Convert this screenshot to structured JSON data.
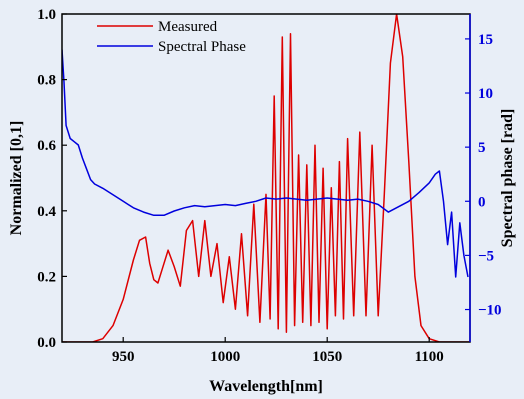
{
  "chart_data": {
    "type": "line",
    "title": "",
    "xlabel": "Wavelength[nm]",
    "ylabel_left": "Normalized [0,1]",
    "ylabel_right": "Spectral phase [rad]",
    "xlim": [
      920,
      1120
    ],
    "ylim_left": [
      0,
      1
    ],
    "ylim_right": [
      -13,
      17.3
    ],
    "x_ticks": [
      950,
      1000,
      1050,
      1100
    ],
    "y_ticks_left": [
      0.0,
      0.2,
      0.4,
      0.6,
      0.8,
      1.0
    ],
    "y_tick_labels_left": [
      "0.0",
      "0.2",
      "0.4",
      "0.6",
      "0.8",
      "1.0"
    ],
    "y_ticks_right": [
      -10,
      -5,
      0,
      5,
      10,
      15
    ],
    "y_tick_labels_right": [
      "−10",
      "−5",
      "0",
      "5",
      "10",
      "15"
    ],
    "grid": false,
    "legend_position": "top-left",
    "series": [
      {
        "name": "Measured",
        "axis": "left",
        "color": "#dd0000",
        "x": [
          920,
          935,
          940,
          945,
          950,
          955,
          958,
          961,
          963,
          965,
          967,
          969,
          972,
          975,
          978,
          981,
          984,
          987,
          990,
          993,
          996,
          999,
          1002,
          1005,
          1008,
          1011,
          1014,
          1017,
          1020,
          1022,
          1024,
          1026,
          1028,
          1030,
          1032,
          1034,
          1036,
          1038,
          1040,
          1042,
          1044,
          1046,
          1048,
          1050,
          1052,
          1054,
          1056,
          1058,
          1060,
          1063,
          1066,
          1069,
          1072,
          1075,
          1078,
          1081,
          1084,
          1087,
          1090,
          1093,
          1096,
          1100,
          1105,
          1120
        ],
        "y": [
          0.0,
          0.0,
          0.01,
          0.05,
          0.13,
          0.25,
          0.31,
          0.32,
          0.24,
          0.19,
          0.18,
          0.22,
          0.28,
          0.23,
          0.17,
          0.34,
          0.37,
          0.2,
          0.37,
          0.2,
          0.3,
          0.12,
          0.26,
          0.1,
          0.33,
          0.08,
          0.42,
          0.06,
          0.45,
          0.07,
          0.75,
          0.04,
          0.93,
          0.03,
          0.94,
          0.05,
          0.57,
          0.06,
          0.54,
          0.05,
          0.6,
          0.06,
          0.53,
          0.04,
          0.47,
          0.08,
          0.55,
          0.07,
          0.62,
          0.08,
          0.64,
          0.08,
          0.6,
          0.08,
          0.45,
          0.85,
          1.0,
          0.87,
          0.55,
          0.2,
          0.05,
          0.01,
          0.0,
          0.0
        ]
      },
      {
        "name": "Spectral Phase",
        "axis": "right",
        "color": "#0000dd",
        "x": [
          920,
          921,
          922,
          924,
          926,
          928,
          930,
          932,
          934,
          936,
          940,
          945,
          950,
          955,
          960,
          965,
          970,
          975,
          980,
          985,
          990,
          995,
          1000,
          1005,
          1010,
          1015,
          1020,
          1025,
          1030,
          1035,
          1040,
          1045,
          1050,
          1055,
          1060,
          1065,
          1070,
          1075,
          1080,
          1085,
          1090,
          1095,
          1100,
          1103,
          1105,
          1107,
          1109,
          1111,
          1113,
          1115,
          1117,
          1119
        ],
        "y": [
          14,
          11,
          7,
          5.8,
          5.5,
          5.2,
          4,
          3,
          2,
          1.6,
          1.2,
          0.6,
          0,
          -0.6,
          -1,
          -1.3,
          -1.3,
          -0.9,
          -0.6,
          -0.4,
          -0.5,
          -0.4,
          -0.3,
          -0.4,
          -0.2,
          0,
          0.3,
          0.2,
          0.3,
          0.2,
          0.1,
          0.2,
          0.3,
          0.2,
          0.1,
          0.2,
          0,
          -0.3,
          -1,
          -0.5,
          0,
          0.8,
          1.7,
          2.5,
          2.8,
          0,
          -4,
          -1,
          -7,
          -2,
          -5,
          -7
        ]
      }
    ]
  }
}
